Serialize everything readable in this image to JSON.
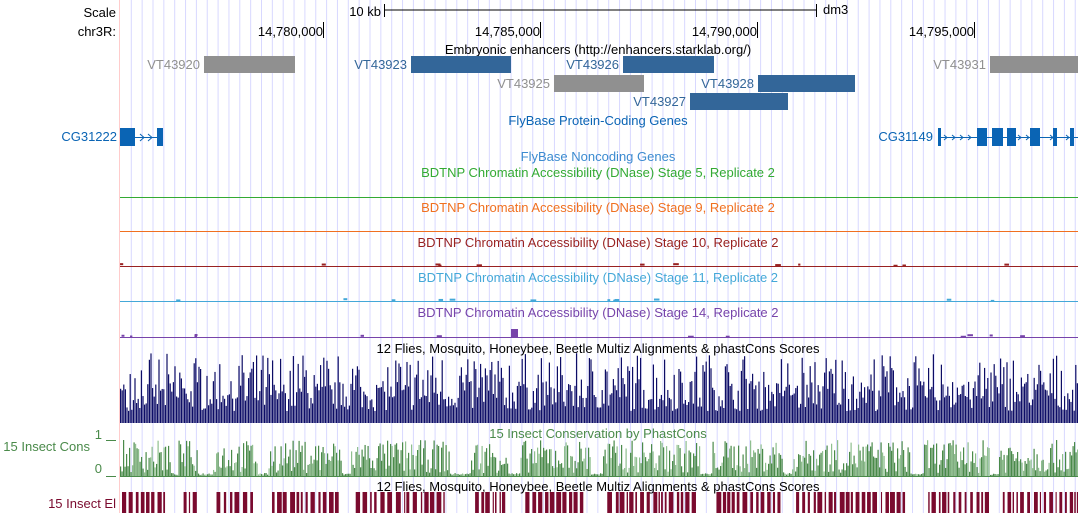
{
  "ruler": {
    "scale_label": "Scale",
    "scale_size": "10 kb",
    "assembly": "dm3",
    "chrom_label": "chr3R:",
    "ticks": [
      "14,780,000",
      "14,785,000",
      "14,790,000",
      "14,795,000"
    ]
  },
  "colors": {
    "guide": "#d8d8ff",
    "enhancer_active": "#336699",
    "enhancer_inactive": "#909090",
    "gene": "#0a64b4",
    "stage5": "#33aa33",
    "stage9": "#f07020",
    "stage10": "#992222",
    "stage11": "#44a8d8",
    "stage14": "#7744aa",
    "multiz": "#0d0d66",
    "cons": "#4a8a4a",
    "elements": "#7a0a2e"
  },
  "tracks": {
    "enhancers": {
      "title": "Embryonic enhancers (http://enhancers.starklab.org/)",
      "items": [
        {
          "name": "VT43920",
          "active": false
        },
        {
          "name": "VT43923",
          "active": true
        },
        {
          "name": "VT43926",
          "active": true
        },
        {
          "name": "VT43925",
          "active": false
        },
        {
          "name": "VT43928",
          "active": true
        },
        {
          "name": "VT43927",
          "active": true
        },
        {
          "name": "VT43931",
          "active": false
        }
      ]
    },
    "coding_genes": {
      "title": "FlyBase Protein-Coding Genes",
      "genes": [
        "CG31222",
        "CG31149"
      ]
    },
    "noncoding_genes": {
      "title": "FlyBase Noncoding Genes"
    },
    "dnase": [
      {
        "title": "BDTNP Chromatin Accessibility (DNase) Stage 5, Replicate 2"
      },
      {
        "title": "BDTNP Chromatin Accessibility (DNase) Stage 9, Replicate 2"
      },
      {
        "title": "BDTNP Chromatin Accessibility (DNase) Stage 10, Replicate 2"
      },
      {
        "title": "BDTNP Chromatin Accessibility (DNase) Stage 11, Replicate 2"
      },
      {
        "title": "BDTNP Chromatin Accessibility (DNase) Stage 14, Replicate 2"
      }
    ],
    "multiz": {
      "title": "12 Flies, Mosquito, Honeybee, Beetle Multiz Alignments & phastCons Scores"
    },
    "cons": {
      "title": "15 Insect Conservation by PhastCons",
      "side_label": "15 Insect Cons",
      "ymax": "1",
      "ymin": "0"
    },
    "elements": {
      "title": "12 Flies, Mosquito, Honeybee, Beetle Multiz Alignments & phastCons Scores",
      "side_label": "15 Insect El"
    }
  }
}
